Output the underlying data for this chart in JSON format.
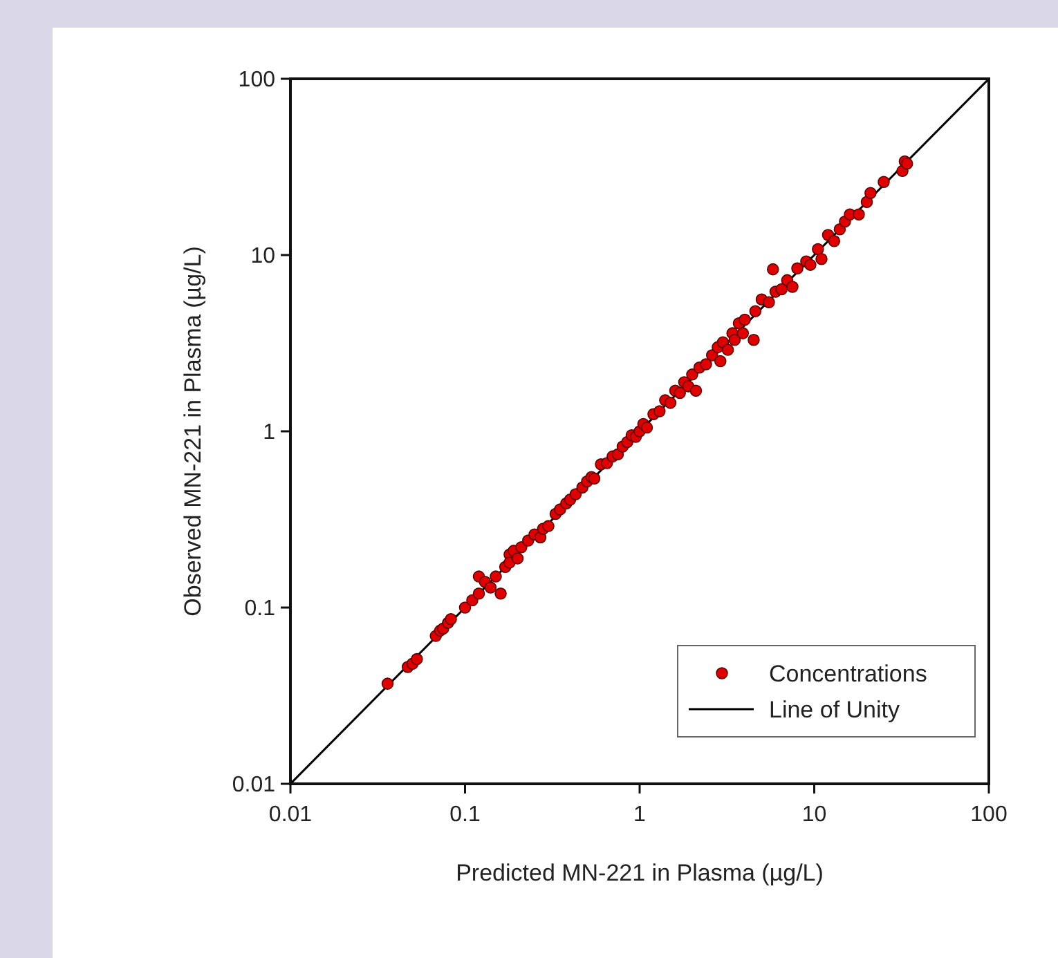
{
  "chart_data": {
    "type": "scatter",
    "xlabel": "Predicted MN-221 in Plasma (µg/L)",
    "ylabel": "Observed MN-221 in Plasma (µg/L)",
    "log": "xy",
    "xlim": [
      0.01,
      100
    ],
    "ylim": [
      0.01,
      100
    ],
    "xticks": [
      0.01,
      0.1,
      1,
      10,
      100
    ],
    "yticks": [
      0.01,
      0.1,
      1,
      10,
      100
    ],
    "legend": "bottom right",
    "marker": "circle",
    "series": [
      {
        "name": "Concentrations",
        "color": "#e00000",
        "x": [
          0.036,
          0.047,
          0.05,
          0.053,
          0.068,
          0.072,
          0.075,
          0.08,
          0.083,
          0.1,
          0.11,
          0.12,
          0.12,
          0.13,
          0.14,
          0.15,
          0.16,
          0.17,
          0.18,
          0.18,
          0.19,
          0.2,
          0.21,
          0.23,
          0.25,
          0.27,
          0.28,
          0.3,
          0.33,
          0.35,
          0.38,
          0.4,
          0.43,
          0.47,
          0.5,
          0.53,
          0.55,
          0.6,
          0.65,
          0.7,
          0.75,
          0.8,
          0.85,
          0.9,
          0.95,
          1.0,
          1.05,
          1.1,
          1.2,
          1.3,
          1.4,
          1.5,
          1.6,
          1.7,
          1.8,
          1.9,
          2.0,
          2.1,
          2.2,
          2.4,
          2.6,
          2.8,
          2.9,
          3.0,
          3.2,
          3.4,
          3.5,
          3.7,
          3.9,
          4.0,
          4.5,
          4.6,
          5.0,
          5.5,
          5.8,
          6.0,
          6.5,
          7.0,
          7.5,
          8.0,
          9.0,
          9.5,
          10.5,
          11,
          12,
          13,
          14,
          15,
          16,
          18,
          20,
          21,
          25,
          32,
          33,
          34
        ],
        "values": [
          0.037,
          0.046,
          0.048,
          0.051,
          0.069,
          0.074,
          0.076,
          0.082,
          0.086,
          0.1,
          0.11,
          0.15,
          0.12,
          0.14,
          0.13,
          0.15,
          0.12,
          0.17,
          0.2,
          0.18,
          0.21,
          0.19,
          0.22,
          0.24,
          0.26,
          0.25,
          0.28,
          0.29,
          0.34,
          0.36,
          0.39,
          0.41,
          0.44,
          0.48,
          0.52,
          0.55,
          0.54,
          0.65,
          0.66,
          0.72,
          0.74,
          0.82,
          0.87,
          0.95,
          0.93,
          1.0,
          1.1,
          1.05,
          1.25,
          1.3,
          1.5,
          1.45,
          1.7,
          1.65,
          1.9,
          1.8,
          2.1,
          1.7,
          2.3,
          2.4,
          2.7,
          3.0,
          2.5,
          3.2,
          2.9,
          3.6,
          3.3,
          4.1,
          3.6,
          4.3,
          3.3,
          4.8,
          5.6,
          5.4,
          8.3,
          6.2,
          6.4,
          7.2,
          6.6,
          8.4,
          9.2,
          8.8,
          10.8,
          9.5,
          13,
          12,
          14,
          15.5,
          17,
          17,
          20,
          22.5,
          26,
          30,
          34,
          33
        ]
      },
      {
        "name": "Line of Unity",
        "type": "line",
        "marker": "none",
        "color": "#000000",
        "x": [
          0.01,
          100
        ],
        "values": [
          0.01,
          100
        ]
      }
    ]
  }
}
